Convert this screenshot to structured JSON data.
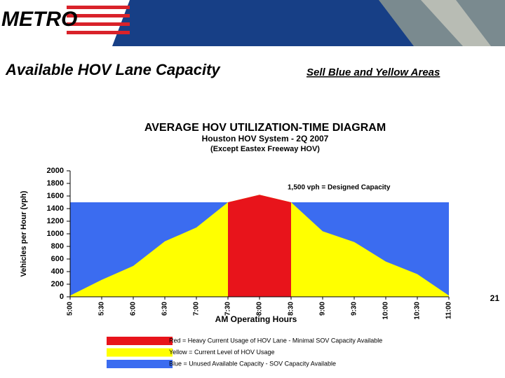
{
  "header": {
    "logo": "METRO",
    "title": "Available HOV Lane Capacity",
    "subtitle": "Sell Blue and Yellow Areas"
  },
  "page_number": "21",
  "chart_data": {
    "type": "area",
    "title": "AVERAGE HOV UTILIZATION-TIME DIAGRAM",
    "subtitle": "Houston HOV System - 2Q 2007",
    "note": "(Except Eastex Freeway HOV)",
    "annotation": "1,500 vph = Designed Capacity",
    "x_label": "AM Operating Hours",
    "y_label": "Vehicles per Hour (vph)",
    "categories": [
      "5:00",
      "5:30",
      "6:00",
      "6:30",
      "7:00",
      "7:30",
      "8:00",
      "8:30",
      "9:00",
      "9:30",
      "10:00",
      "10:30",
      "11:00"
    ],
    "ylim": [
      0,
      2000
    ],
    "yticks": [
      0,
      200,
      400,
      600,
      800,
      1000,
      1200,
      1400,
      1600,
      1800,
      2000
    ],
    "series": [
      {
        "name": "Red = Heavy Current Usage of HOV Lane - Minimal SOV Capacity Available",
        "color": "#e8141b",
        "values": [
          null,
          null,
          null,
          null,
          null,
          1500,
          1620,
          1500,
          null,
          null,
          null,
          null,
          null
        ]
      },
      {
        "name": "Yellow = Current Level of HOV Usage",
        "color": "#ffff00",
        "values": [
          20,
          270,
          490,
          880,
          1100,
          1500,
          1620,
          1500,
          1040,
          870,
          560,
          360,
          20
        ]
      },
      {
        "name": "Blue = Unused Available Capacity - SOV Capacity Available",
        "color": "#3b6cf0",
        "values": [
          1500,
          1500,
          1500,
          1500,
          1500,
          1500,
          1500,
          1500,
          1500,
          1500,
          1500,
          1500,
          1500
        ]
      }
    ]
  }
}
